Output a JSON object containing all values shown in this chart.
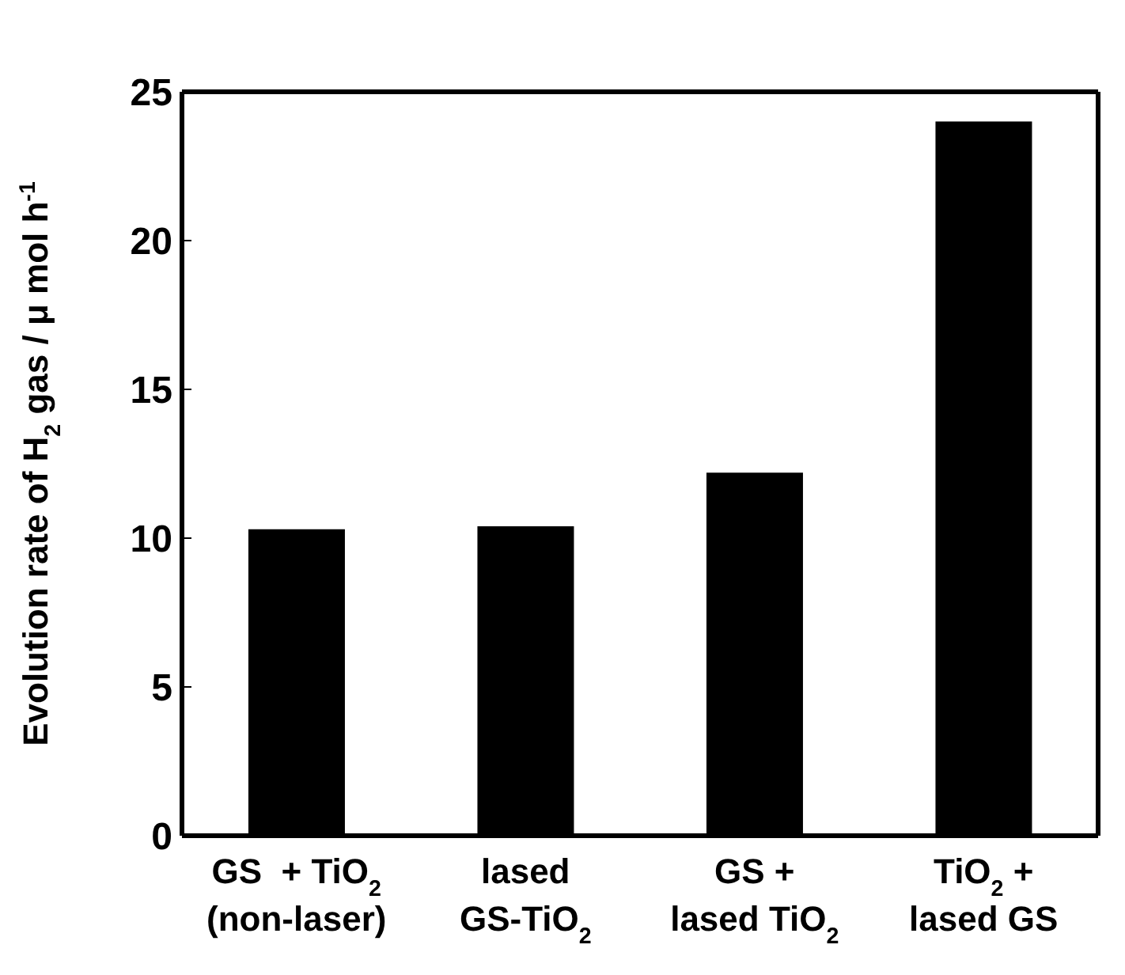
{
  "chart_data": {
    "type": "bar",
    "ylabel": "Evolution rate of H$_{2}$ gas / μ mol h$^{-1}$",
    "categories": [
      "GS  + TiO$_{2}$\n(non-laser)",
      "lased\nGS-TiO$_{2}$",
      "GS +\nlased TiO$_{2}$",
      "TiO$_{2}$ +\nlased GS"
    ],
    "values": [
      10.3,
      10.4,
      12.2,
      24.0
    ],
    "color": "#000000",
    "ylim": [
      0,
      25
    ],
    "yticks": [
      0,
      5,
      10,
      15,
      20,
      25
    ],
    "grid": false,
    "legend": false
  }
}
